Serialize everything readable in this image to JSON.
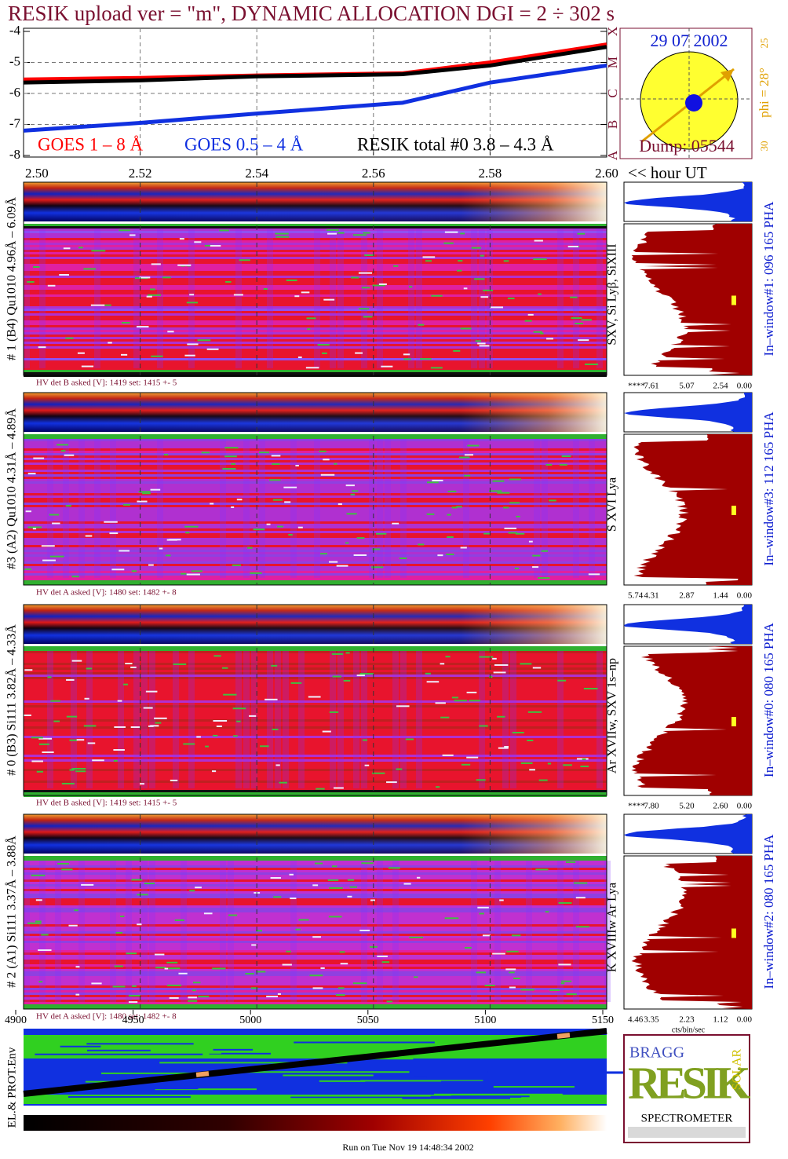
{
  "header": {
    "title": "RESIK upload ver = \"m\", DYNAMIC ALLOCATION  DGI =   2 ÷ 302 s"
  },
  "chart_data": {
    "type": "line",
    "x": [
      2.5,
      2.52,
      2.54,
      2.565,
      2.58,
      2.6
    ],
    "series": [
      {
        "name": "GOES 1 – 8 Å",
        "color": "#ff0000",
        "values": [
          -5.55,
          -5.5,
          -5.42,
          -5.35,
          -5.0,
          -4.42
        ]
      },
      {
        "name": "GOES 0.5 – 4 Å",
        "color": "#1030e0",
        "values": [
          -7.2,
          -6.95,
          -6.65,
          -6.3,
          -5.65,
          -5.1
        ]
      },
      {
        "name": "RESIK total #0  3.8 – 4.3 Å",
        "color": "#000000",
        "values": [
          -5.65,
          -5.58,
          -5.45,
          -5.38,
          -5.1,
          -4.5
        ]
      }
    ],
    "xlim": [
      2.5,
      2.6
    ],
    "xticks": [
      {
        "value": 2.5,
        "label": "2.50"
      },
      {
        "value": 2.52,
        "label": "2.52"
      },
      {
        "value": 2.54,
        "label": "2.54"
      },
      {
        "value": 2.56,
        "label": "2.56"
      },
      {
        "value": 2.58,
        "label": "2.58"
      },
      {
        "value": 2.6,
        "label": "2.60"
      }
    ],
    "ylim": [
      -8,
      -4
    ],
    "yticks": [
      -4,
      -5,
      -6,
      -7,
      -8
    ],
    "y2lim": [
      -8,
      -4
    ],
    "y2ticks": [
      {
        "value": -4,
        "label": "X"
      },
      {
        "value": -5,
        "label": "M"
      },
      {
        "value": -6,
        "label": "C"
      },
      {
        "value": -7,
        "label": "B"
      },
      {
        "value": -8,
        "label": "A"
      }
    ],
    "x_label": "<< hour UT",
    "grid": true
  },
  "sun": {
    "date": "29 07 2002",
    "dump": "Dump: 05544",
    "phi": "phi = 28°",
    "top_tick": "25",
    "bottom_tick": "30"
  },
  "panels": [
    {
      "label": "# 1 (B4) Qu1010 4.96Å – 6.09Å",
      "lines": "SXV, Si Lyβ, SiXIII",
      "window": "In–window#1:  096 165 PHA",
      "hv": "HV det B asked [V]:  1419 set:  1415 +-    5",
      "hist_ticks": [
        "****",
        "7.61",
        "5.07",
        "2.54",
        "0.00"
      ]
    },
    {
      "label": "#3 (A2) Qu1010  4.31Å – 4.89Å",
      "lines": "S XVI Lya",
      "window": "In–window#3:  112 165 PHA",
      "hv": "HV det A asked [V]:  1480 set:  1482 +-    8",
      "hist_ticks": [
        "5.74",
        "4.31",
        "2.87",
        "1.44",
        "0.00"
      ]
    },
    {
      "label": "# 0 (B3) Si111  3.82Å – 4.33Å",
      "lines": "Ar XVIIw,  SXV 1s–np",
      "window": "In–window#0:  080 165 PHA",
      "hv": "HV det B asked [V]:  1419 set:  1415 +-    5",
      "hist_ticks": [
        "****",
        "7.80",
        "5.20",
        "2.60",
        "0.00"
      ]
    },
    {
      "label": "# 2 (A1) Si111  3.37Å – 3.88Å",
      "lines": "K XVIIIw  Ar Lya",
      "window": "In–window#2:  080 165 PHA",
      "hv": "HV det A asked [V]:  1480 set:  1482 +-    8",
      "hist_ticks": [
        "4.46",
        "3.35",
        "2.23",
        "1.12",
        "0.00"
      ]
    }
  ],
  "hist_unit": "cts/bin/sec",
  "channel_ticks": [
    4900,
    4950,
    5000,
    5050,
    5100,
    5150
  ],
  "env_label": "EL.& PROT.Env",
  "logo": {
    "main": "RESIK",
    "top": "BRAGG",
    "side": "SOLAR",
    "bottom": "SPECTROMETER"
  },
  "footer": "Run on Tue Nov 19 14:48:34 2002"
}
